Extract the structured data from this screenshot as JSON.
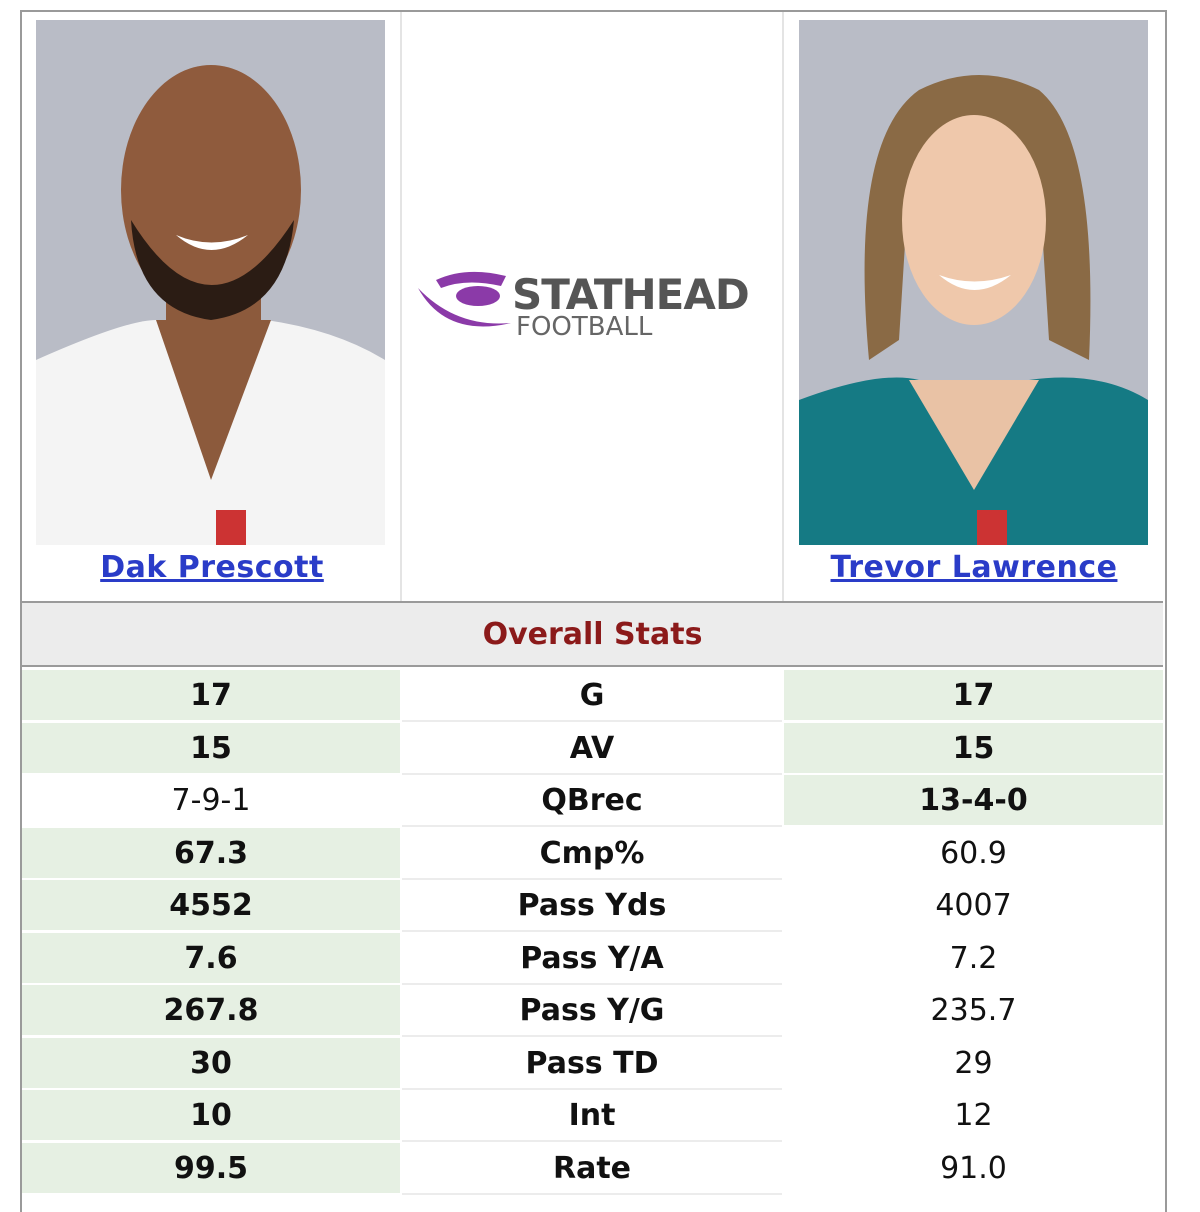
{
  "players": [
    {
      "name": "Dak Prescott"
    },
    {
      "name": "Trevor Lawrence"
    }
  ],
  "logo": {
    "line1": "STATHEAD",
    "line2": "FOOTBALL"
  },
  "section": "Overall Stats",
  "rows": [
    {
      "label": "G",
      "left": "17",
      "right": "17",
      "highlight": "both"
    },
    {
      "label": "AV",
      "left": "15",
      "right": "15",
      "highlight": "both"
    },
    {
      "label": "QBrec",
      "left": "7-9-1",
      "right": "13-4-0",
      "highlight": "right"
    },
    {
      "label": "Cmp%",
      "left": "67.3",
      "right": "60.9",
      "highlight": "left"
    },
    {
      "label": "Pass Yds",
      "left": "4552",
      "right": "4007",
      "highlight": "left"
    },
    {
      "label": "Pass Y/A",
      "left": "7.6",
      "right": "7.2",
      "highlight": "left"
    },
    {
      "label": "Pass Y/G",
      "left": "267.8",
      "right": "235.7",
      "highlight": "left"
    },
    {
      "label": "Pass TD",
      "left": "30",
      "right": "29",
      "highlight": "left"
    },
    {
      "label": "Int",
      "left": "10",
      "right": "12",
      "highlight": "left"
    },
    {
      "label": "Rate",
      "left": "99.5",
      "right": "91.0",
      "highlight": "left"
    }
  ]
}
